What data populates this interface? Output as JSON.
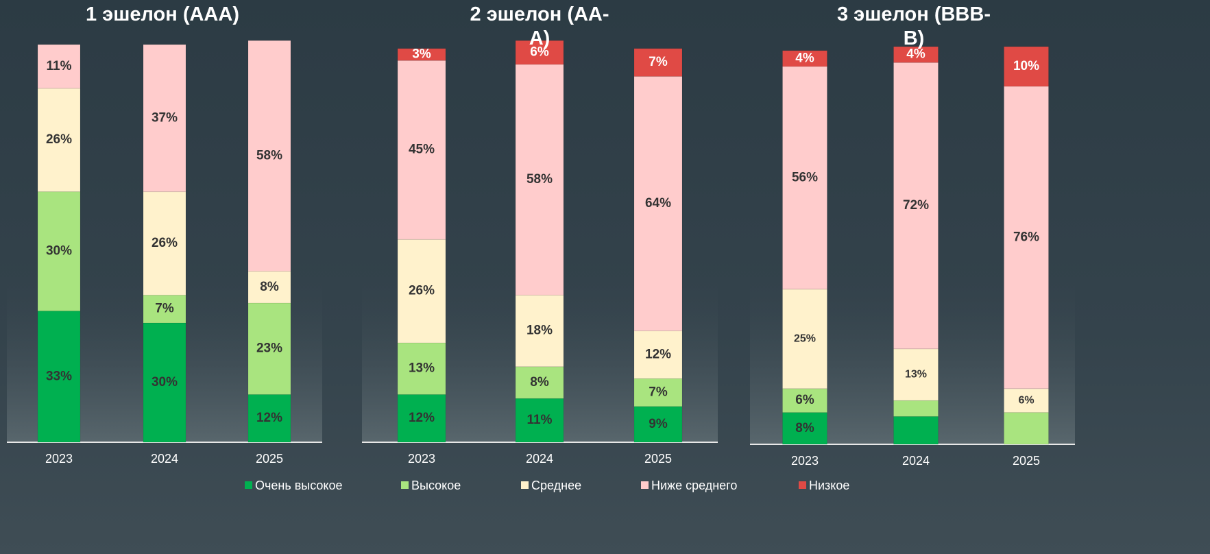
{
  "chart_data": [
    {
      "type": "stacked-bar",
      "title": "1 эшелон (AAA)",
      "categories": [
        "2023",
        "2024",
        "2025"
      ],
      "ylim": [
        0,
        100
      ],
      "series": [
        {
          "values": [
            33,
            30,
            12
          ],
          "value_labels": [
            "33%",
            "30%",
            "12%"
          ]
        },
        {
          "values": [
            30,
            7,
            23
          ],
          "value_labels": [
            "30%",
            "7%",
            "23%"
          ]
        },
        {
          "values": [
            26,
            26,
            8
          ],
          "value_labels": [
            "26%",
            "26%",
            "8%"
          ]
        },
        {
          "values": [
            11,
            37,
            58
          ],
          "value_labels": [
            "11%",
            "37%",
            "58%"
          ]
        },
        {
          "values": [
            null,
            null,
            null
          ],
          "value_labels": [
            null,
            null,
            null
          ]
        }
      ]
    },
    {
      "type": "stacked-bar",
      "title": "2 эшелон (AA-A)",
      "categories": [
        "2023",
        "2024",
        "2025"
      ],
      "ylim": [
        0,
        100
      ],
      "series": [
        {
          "values": [
            12,
            11,
            9
          ],
          "value_labels": [
            "12%",
            "11%",
            "9%"
          ]
        },
        {
          "values": [
            13,
            8,
            7
          ],
          "value_labels": [
            "13%",
            "8%",
            "7%"
          ]
        },
        {
          "values": [
            26,
            18,
            12
          ],
          "value_labels": [
            "26%",
            "18%",
            "12%"
          ]
        },
        {
          "values": [
            45,
            58,
            64
          ],
          "value_labels": [
            "45%",
            "58%",
            "64%"
          ]
        },
        {
          "values": [
            3,
            6,
            7
          ],
          "value_labels": [
            "3%",
            "6%",
            "7%"
          ]
        }
      ]
    },
    {
      "type": "stacked-bar",
      "title": "3 эшелон (BBB-B)",
      "categories": [
        "2023",
        "2024",
        "2025"
      ],
      "ylim": [
        0,
        100
      ],
      "series": [
        {
          "values": [
            8,
            7,
            null
          ],
          "value_labels": [
            "8%",
            null,
            null
          ]
        },
        {
          "values": [
            6,
            4,
            8
          ],
          "value_labels": [
            "6%",
            null,
            null
          ]
        },
        {
          "values": [
            25,
            13,
            6
          ],
          "value_labels": [
            "25%",
            "13%",
            "6%"
          ]
        },
        {
          "values": [
            56,
            72,
            76
          ],
          "value_labels": [
            "56%",
            "72%",
            "76%"
          ]
        },
        {
          "values": [
            4,
            4,
            10
          ],
          "value_labels": [
            "4%",
            "4%",
            "10%"
          ]
        }
      ]
    }
  ],
  "legend": [
    {
      "name": "Очень высокое",
      "color": "#00b050"
    },
    {
      "name": "Высокое",
      "color": "#a9e47f"
    },
    {
      "name": "Среднее",
      "color": "#fff2cc"
    },
    {
      "name": "Ниже среднего",
      "color": "#ffcccc"
    },
    {
      "name": "Низкое",
      "color": "#e04a45"
    }
  ]
}
